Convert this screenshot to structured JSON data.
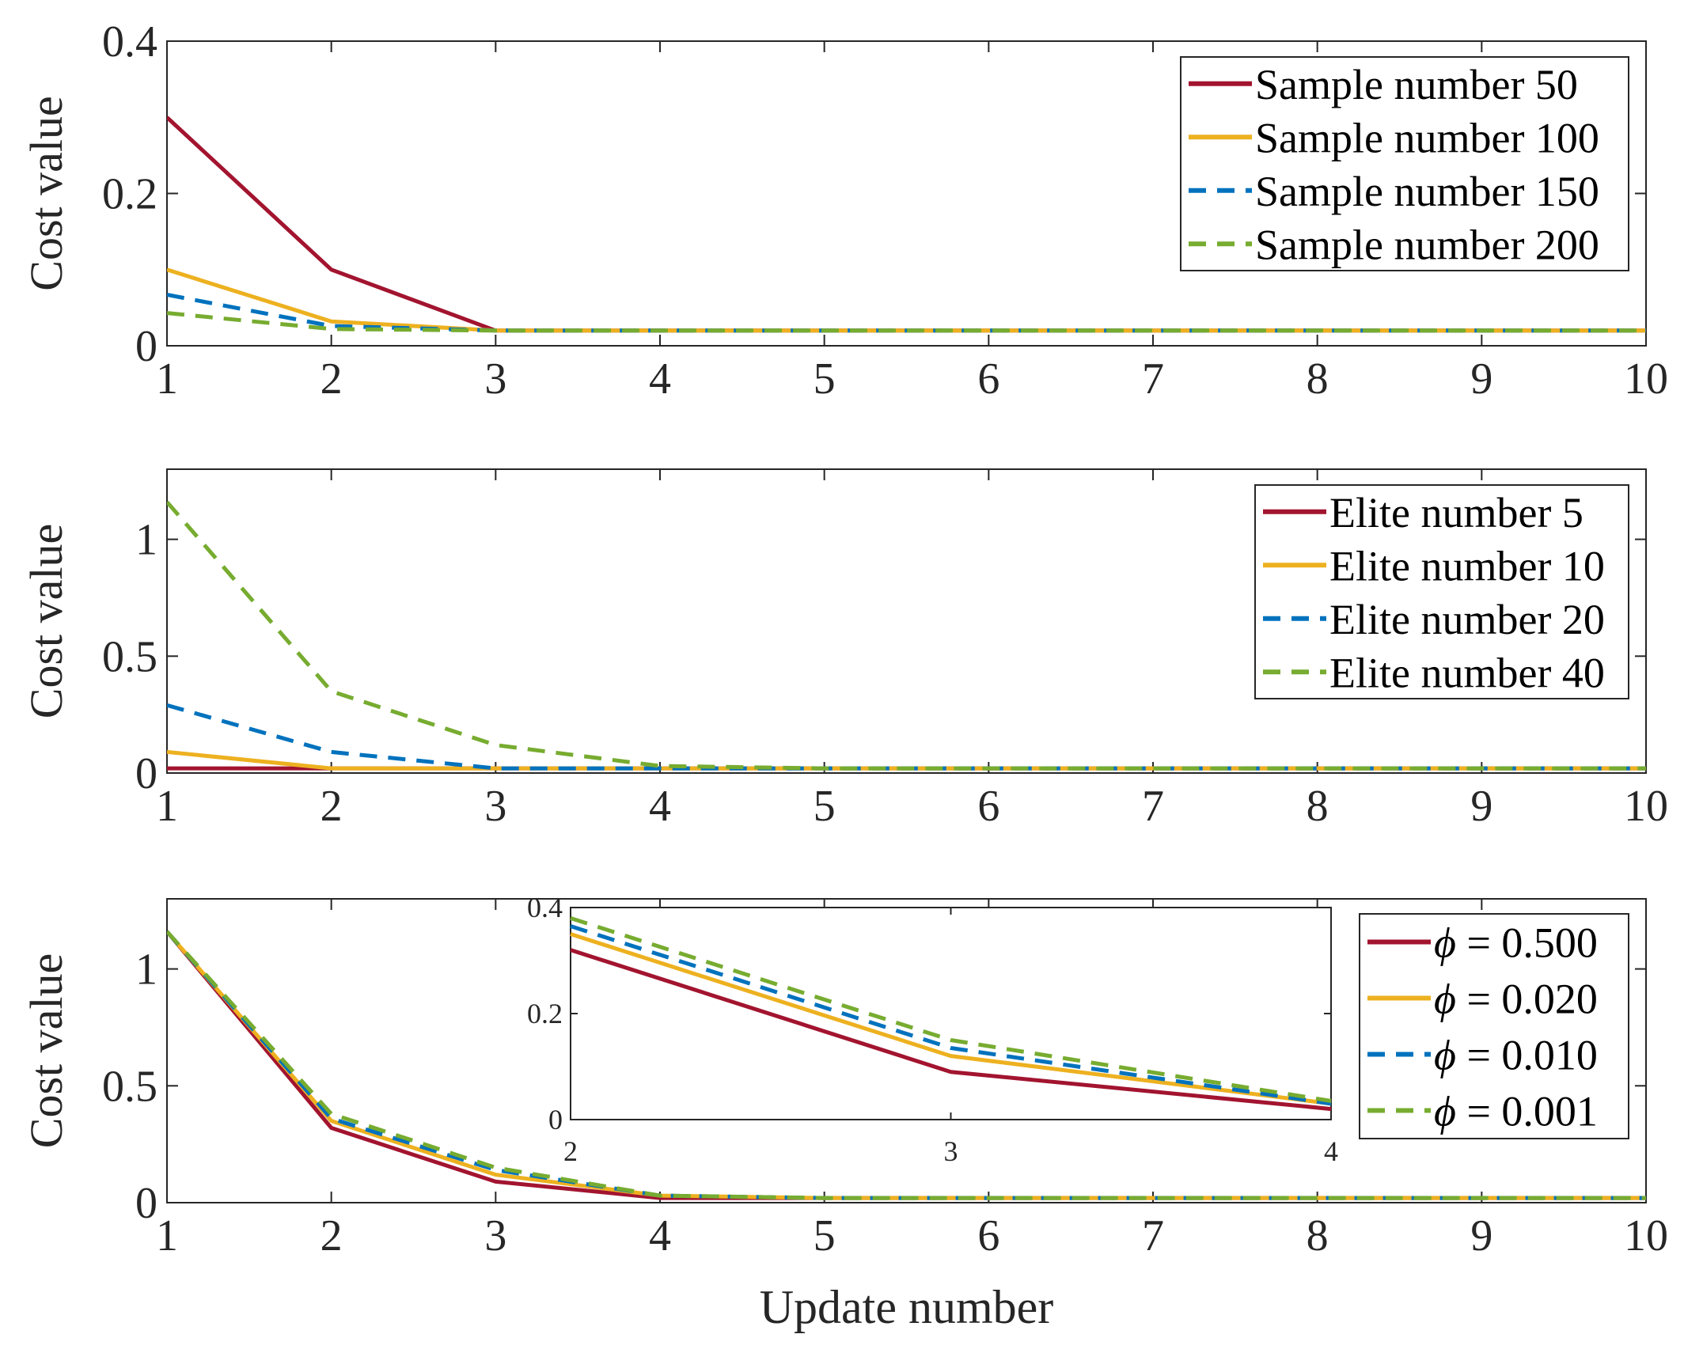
{
  "colors": {
    "red": "#A2142F",
    "yellow": "#EDB120",
    "blue": "#0072BD",
    "green": "#77AC30",
    "axis": "#262626"
  },
  "chart_data": [
    {
      "id": "sample",
      "type": "line",
      "ylabel": "Cost value",
      "xlabel": "",
      "xlim": [
        1,
        10
      ],
      "ylim": [
        0,
        0.4
      ],
      "xticks": [
        "1",
        "2",
        "3",
        "4",
        "5",
        "6",
        "7",
        "8",
        "9",
        "10"
      ],
      "yticks": [
        {
          "value": 0,
          "label": "0"
        },
        {
          "value": 0.2,
          "label": "0.2"
        },
        {
          "value": 0.4,
          "label": "0.4"
        }
      ],
      "x": [
        1,
        2,
        3,
        4,
        5,
        6,
        7,
        8,
        9,
        10
      ],
      "legend_position": "top-right",
      "series": [
        {
          "name": "Sample number 50",
          "color": "red",
          "dash": false,
          "values": [
            0.3,
            0.1,
            0.02,
            0.02,
            0.02,
            0.02,
            0.02,
            0.02,
            0.02,
            0.02
          ]
        },
        {
          "name": "Sample number 100",
          "color": "yellow",
          "dash": false,
          "values": [
            0.1,
            0.032,
            0.02,
            0.02,
            0.02,
            0.02,
            0.02,
            0.02,
            0.02,
            0.02
          ]
        },
        {
          "name": "Sample number 150",
          "color": "blue",
          "dash": true,
          "values": [
            0.067,
            0.026,
            0.02,
            0.02,
            0.02,
            0.02,
            0.02,
            0.02,
            0.02,
            0.02
          ]
        },
        {
          "name": "Sample number 200",
          "color": "green",
          "dash": true,
          "values": [
            0.043,
            0.022,
            0.02,
            0.02,
            0.02,
            0.02,
            0.02,
            0.02,
            0.02,
            0.02
          ]
        }
      ]
    },
    {
      "id": "elite",
      "type": "line",
      "ylabel": "Cost value",
      "xlabel": "",
      "xlim": [
        1,
        10
      ],
      "ylim": [
        0,
        1.3
      ],
      "xticks": [
        "1",
        "2",
        "3",
        "4",
        "5",
        "6",
        "7",
        "8",
        "9",
        "10"
      ],
      "yticks": [
        {
          "value": 0,
          "label": "0"
        },
        {
          "value": 0.5,
          "label": "0.5"
        },
        {
          "value": 1,
          "label": "1"
        }
      ],
      "x": [
        1,
        2,
        3,
        4,
        5,
        6,
        7,
        8,
        9,
        10
      ],
      "legend_position": "top-right",
      "series": [
        {
          "name": "Elite number 5",
          "color": "red",
          "dash": false,
          "values": [
            0.02,
            0.02,
            0.02,
            0.02,
            0.02,
            0.02,
            0.02,
            0.02,
            0.02,
            0.02
          ]
        },
        {
          "name": "Elite number 10",
          "color": "yellow",
          "dash": false,
          "values": [
            0.09,
            0.02,
            0.02,
            0.02,
            0.02,
            0.02,
            0.02,
            0.02,
            0.02,
            0.02
          ]
        },
        {
          "name": "Elite number 20",
          "color": "blue",
          "dash": true,
          "values": [
            0.29,
            0.09,
            0.02,
            0.02,
            0.02,
            0.02,
            0.02,
            0.02,
            0.02,
            0.02
          ]
        },
        {
          "name": "Elite number 40",
          "color": "green",
          "dash": true,
          "values": [
            1.16,
            0.35,
            0.12,
            0.03,
            0.02,
            0.02,
            0.02,
            0.02,
            0.02,
            0.02
          ]
        }
      ]
    },
    {
      "id": "phi",
      "type": "line",
      "ylabel": "Cost value",
      "xlabel": "Update number",
      "xlim": [
        1,
        10
      ],
      "ylim": [
        0,
        1.3
      ],
      "xticks": [
        "1",
        "2",
        "3",
        "4",
        "5",
        "6",
        "7",
        "8",
        "9",
        "10"
      ],
      "yticks": [
        {
          "value": 0,
          "label": "0"
        },
        {
          "value": 0.5,
          "label": "0.5"
        },
        {
          "value": 1,
          "label": "1"
        }
      ],
      "x": [
        1,
        2,
        3,
        4,
        5,
        6,
        7,
        8,
        9,
        10
      ],
      "legend_position": "top-right",
      "series": [
        {
          "name": "ϕ = 0.500",
          "symbol": "ϕ",
          "value_text": "= 0.500",
          "color": "red",
          "dash": false,
          "values": [
            1.16,
            0.32,
            0.09,
            0.02,
            0.02,
            0.02,
            0.02,
            0.02,
            0.02,
            0.02
          ]
        },
        {
          "name": "ϕ = 0.020",
          "symbol": "ϕ",
          "value_text": "= 0.020",
          "color": "yellow",
          "dash": false,
          "values": [
            1.16,
            0.35,
            0.12,
            0.03,
            0.02,
            0.02,
            0.02,
            0.02,
            0.02,
            0.02
          ]
        },
        {
          "name": "ϕ = 0.010",
          "symbol": "ϕ",
          "value_text": "= 0.010",
          "color": "blue",
          "dash": true,
          "values": [
            1.16,
            0.36,
            0.14,
            0.03,
            0.02,
            0.02,
            0.02,
            0.02,
            0.02,
            0.02
          ]
        },
        {
          "name": "ϕ = 0.001",
          "symbol": "ϕ",
          "value_text": "= 0.001",
          "color": "green",
          "dash": true,
          "values": [
            1.16,
            0.38,
            0.15,
            0.03,
            0.02,
            0.02,
            0.02,
            0.02,
            0.02,
            0.02
          ]
        }
      ],
      "inset": {
        "type": "line",
        "xlim": [
          2,
          4
        ],
        "ylim": [
          0,
          0.4
        ],
        "xticks": [
          "2",
          "3",
          "4"
        ],
        "yticks": [
          {
            "value": 0,
            "label": "0"
          },
          {
            "value": 0.2,
            "label": "0.2"
          },
          {
            "value": 0.4,
            "label": "0.4"
          }
        ],
        "x": [
          2,
          3,
          4
        ],
        "series": [
          {
            "name": "ϕ = 0.500",
            "color": "red",
            "dash": false,
            "values": [
              0.32,
              0.09,
              0.02
            ]
          },
          {
            "name": "ϕ = 0.020",
            "color": "yellow",
            "dash": false,
            "values": [
              0.35,
              0.12,
              0.03
            ]
          },
          {
            "name": "ϕ = 0.010",
            "color": "blue",
            "dash": true,
            "values": [
              0.365,
              0.135,
              0.03
            ]
          },
          {
            "name": "ϕ = 0.001",
            "color": "green",
            "dash": true,
            "values": [
              0.38,
              0.15,
              0.035
            ]
          }
        ]
      }
    }
  ]
}
